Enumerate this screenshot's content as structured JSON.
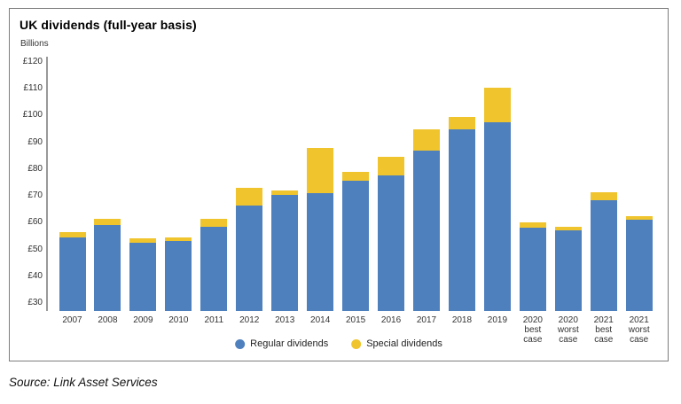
{
  "chart": {
    "title": "UK dividends (full-year basis)",
    "unit_label": "Billions",
    "source": "Source: Link Asset Services",
    "colors": {
      "regular": "#4e80be",
      "special": "#efc42d",
      "axis_line": "#999999",
      "frame_border": "#7d7d7d"
    },
    "legend": [
      {
        "label": "Regular dividends",
        "color": "#4e80be"
      },
      {
        "label": "Special dividends",
        "color": "#efc42d"
      }
    ]
  },
  "chart_data": {
    "type": "bar",
    "stacked": true,
    "title": "UK dividends (full-year basis)",
    "ylabel": "Billions",
    "xlabel": "",
    "y_tick_prefix": "£",
    "y_ticks": [
      30,
      40,
      50,
      60,
      70,
      80,
      90,
      100,
      110,
      120
    ],
    "ylim": [
      27,
      122
    ],
    "grid": false,
    "legend_position": "bottom",
    "categories": [
      "2007",
      "2008",
      "2009",
      "2010",
      "2011",
      "2012",
      "2013",
      "2014",
      "2015",
      "2016",
      "2017",
      "2018",
      "2019",
      [
        "2020",
        "best",
        "case"
      ],
      [
        "2020",
        "worst",
        "case"
      ],
      [
        "2021",
        "best",
        "case"
      ],
      [
        "2021",
        "worst",
        "case"
      ]
    ],
    "series": [
      {
        "name": "Regular dividends",
        "color": "#4e80be",
        "values": [
          54.5,
          59,
          52.5,
          53,
          58.5,
          66.5,
          70.5,
          71,
          75.5,
          77.5,
          87,
          95,
          97.5,
          58,
          57,
          68.5,
          61
        ]
      },
      {
        "name": "Special dividends",
        "color": "#efc42d",
        "values": [
          2,
          2.5,
          1.5,
          1.5,
          3,
          6.5,
          1.5,
          17,
          3.5,
          7,
          8,
          4.5,
          13,
          2,
          1.5,
          3,
          1.5
        ]
      }
    ],
    "totals": [
      56.5,
      61.5,
      54,
      54.5,
      61.5,
      73,
      72,
      88,
      79,
      84.5,
      95,
      99.5,
      110.5,
      60,
      58.5,
      71.5,
      62.5
    ]
  }
}
